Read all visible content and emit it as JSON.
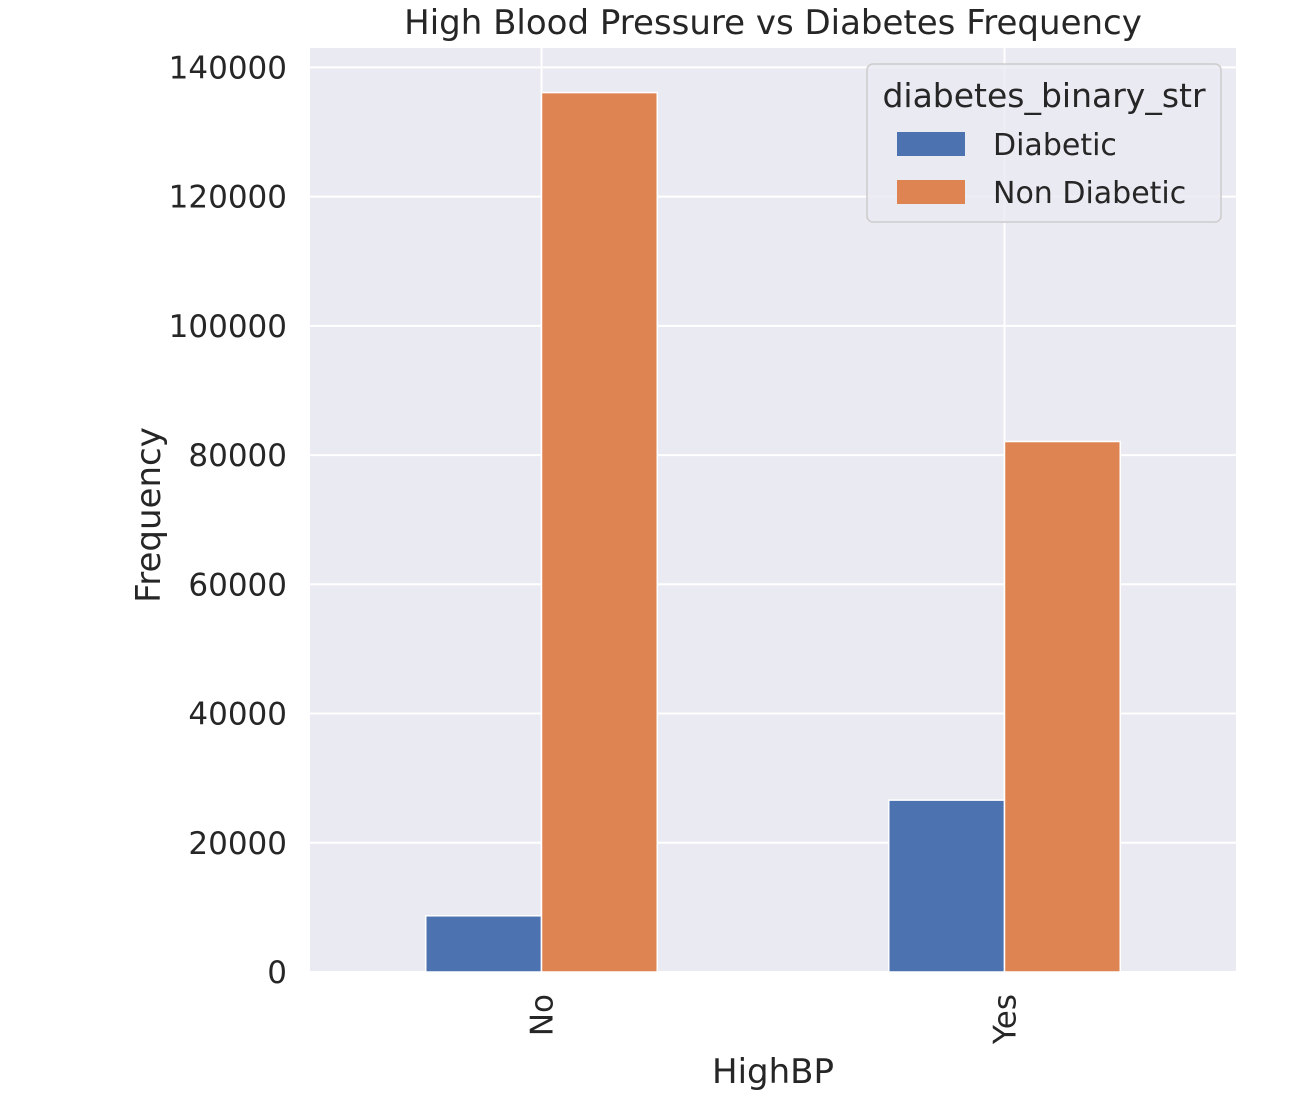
{
  "chart_data": {
    "type": "bar",
    "title": "High Blood Pressure vs Diabetes Frequency",
    "xlabel": "HighBP",
    "ylabel": "Frequency",
    "categories": [
      "No",
      "Yes"
    ],
    "series": [
      {
        "name": "Diabetic",
        "color": "#4c72b0",
        "values": [
          8700,
          26600
        ]
      },
      {
        "name": "Non Diabetic",
        "color": "#dd8452",
        "values": [
          136100,
          82100
        ]
      }
    ],
    "ylim": [
      0,
      143000
    ],
    "yticks": [
      0,
      20000,
      40000,
      60000,
      80000,
      100000,
      120000,
      140000
    ],
    "ytick_labels": [
      "0",
      "20000",
      "40000",
      "60000",
      "80000",
      "100000",
      "120000",
      "140000"
    ],
    "grid": true,
    "legend": {
      "title": "diabetes_binary_str",
      "placement": "top-right"
    },
    "background_color": "#eaeaf2",
    "grid_color": "#ffffff"
  }
}
